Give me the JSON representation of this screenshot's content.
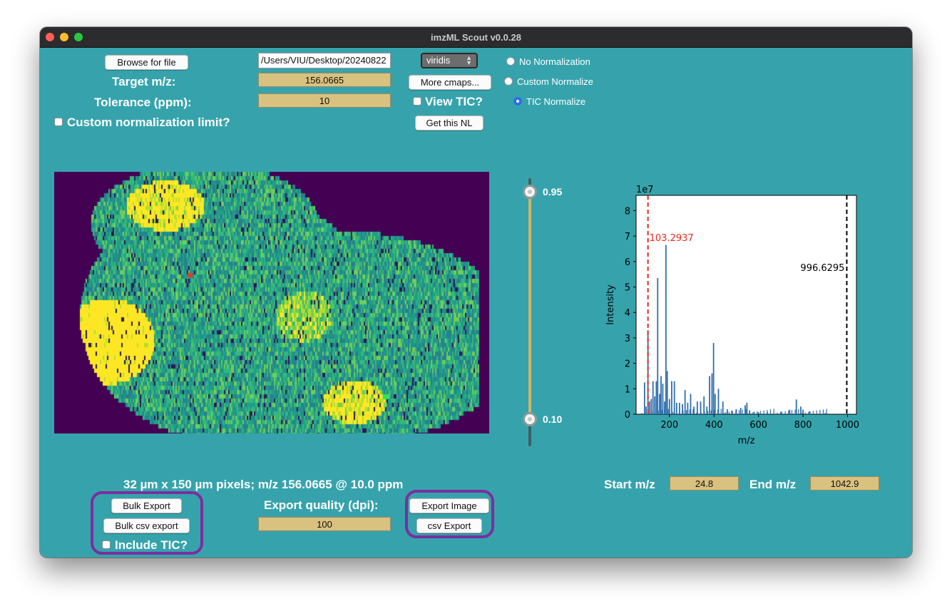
{
  "window": {
    "title": "imzML Scout v0.0.28"
  },
  "controls": {
    "browse_label": "Browse for file",
    "file_path": "/Users/VIU/Desktop/20240822",
    "target_mz_label": "Target m/z:",
    "target_mz_value": "156.0665",
    "tolerance_label": "Tolerance (ppm):",
    "tolerance_value": "10",
    "custom_nl_label": "Custom normalization limit?",
    "cmap_value": "viridis",
    "more_cmaps_label": "More cmaps...",
    "view_tic_label": "View TIC?",
    "get_nl_label": "Get this NL",
    "normalization": [
      {
        "label": "No Normalization",
        "selected": false
      },
      {
        "label": "Custom Normalize",
        "selected": false
      },
      {
        "label": "TIC Normalize",
        "selected": true
      }
    ]
  },
  "image": {
    "caption": "32 µm x 150 µm pixels; m/z 156.0665 @ 10.0 ppm",
    "colors": {
      "background": "#440154",
      "low": "#31688e",
      "mid": "#35b779",
      "high": "#fde725"
    }
  },
  "slider": {
    "upper": "0.95",
    "lower": "0.10"
  },
  "export": {
    "bulk_export_label": "Bulk Export",
    "bulk_csv_label": "Bulk csv export",
    "include_tic_label": "Include TIC?",
    "quality_label": "Export quality (dpi):",
    "quality_value": "100",
    "export_image_label": "Export Image",
    "csv_export_label": "csv Export"
  },
  "range": {
    "start_label": "Start m/z",
    "start_value": "24.8",
    "end_label": "End m/z",
    "end_value": "1042.9"
  },
  "chart_data": {
    "type": "bar",
    "title": "",
    "xlabel": "m/z",
    "ylabel": "Intensity",
    "y_multiplier": "1e7",
    "xlim": [
      50,
      1040
    ],
    "ylim": [
      0,
      8.6
    ],
    "x_ticks": [
      "200",
      "400",
      "600",
      "800",
      "1000"
    ],
    "y_ticks": [
      "0",
      "1",
      "2",
      "3",
      "4",
      "5",
      "6",
      "7",
      "8"
    ],
    "x": [
      88,
      95,
      103.3,
      110,
      118,
      126,
      134,
      141,
      147,
      156,
      162,
      170,
      178,
      184,
      190,
      200,
      210,
      222,
      232,
      245,
      258,
      270,
      282,
      295,
      310,
      325,
      340,
      355,
      368,
      380,
      391,
      398,
      405,
      420,
      440,
      460,
      480,
      500,
      520,
      540,
      548,
      560,
      580,
      600,
      640,
      700,
      740,
      770,
      790,
      800,
      830,
      900
    ],
    "values": [
      1.25,
      0.3,
      3.3,
      0.5,
      0.6,
      1.3,
      0.7,
      1.3,
      5.35,
      0.8,
      1.5,
      1.2,
      0.5,
      6.65,
      1.7,
      0.6,
      1.3,
      1.3,
      0.45,
      0.45,
      0.4,
      0.95,
      0.45,
      0.8,
      0.3,
      0.5,
      0.5,
      0.7,
      0.3,
      1.5,
      1.6,
      2.8,
      0.8,
      1.0,
      0.5,
      0.2,
      0.15,
      0.2,
      0.25,
      0.35,
      0.45,
      0.15,
      0.1,
      0.08,
      0.08,
      0.1,
      0.18,
      0.58,
      0.3,
      0.18,
      0.12,
      0.05
    ],
    "annotations": [
      {
        "text": "103.2937",
        "x": 103.3,
        "color": "#e8281e",
        "style": "dashed"
      },
      {
        "text": "996.6295",
        "x": 996.6,
        "color": "#000000",
        "style": "dashed"
      }
    ],
    "bar_color": "#2f6fae"
  }
}
